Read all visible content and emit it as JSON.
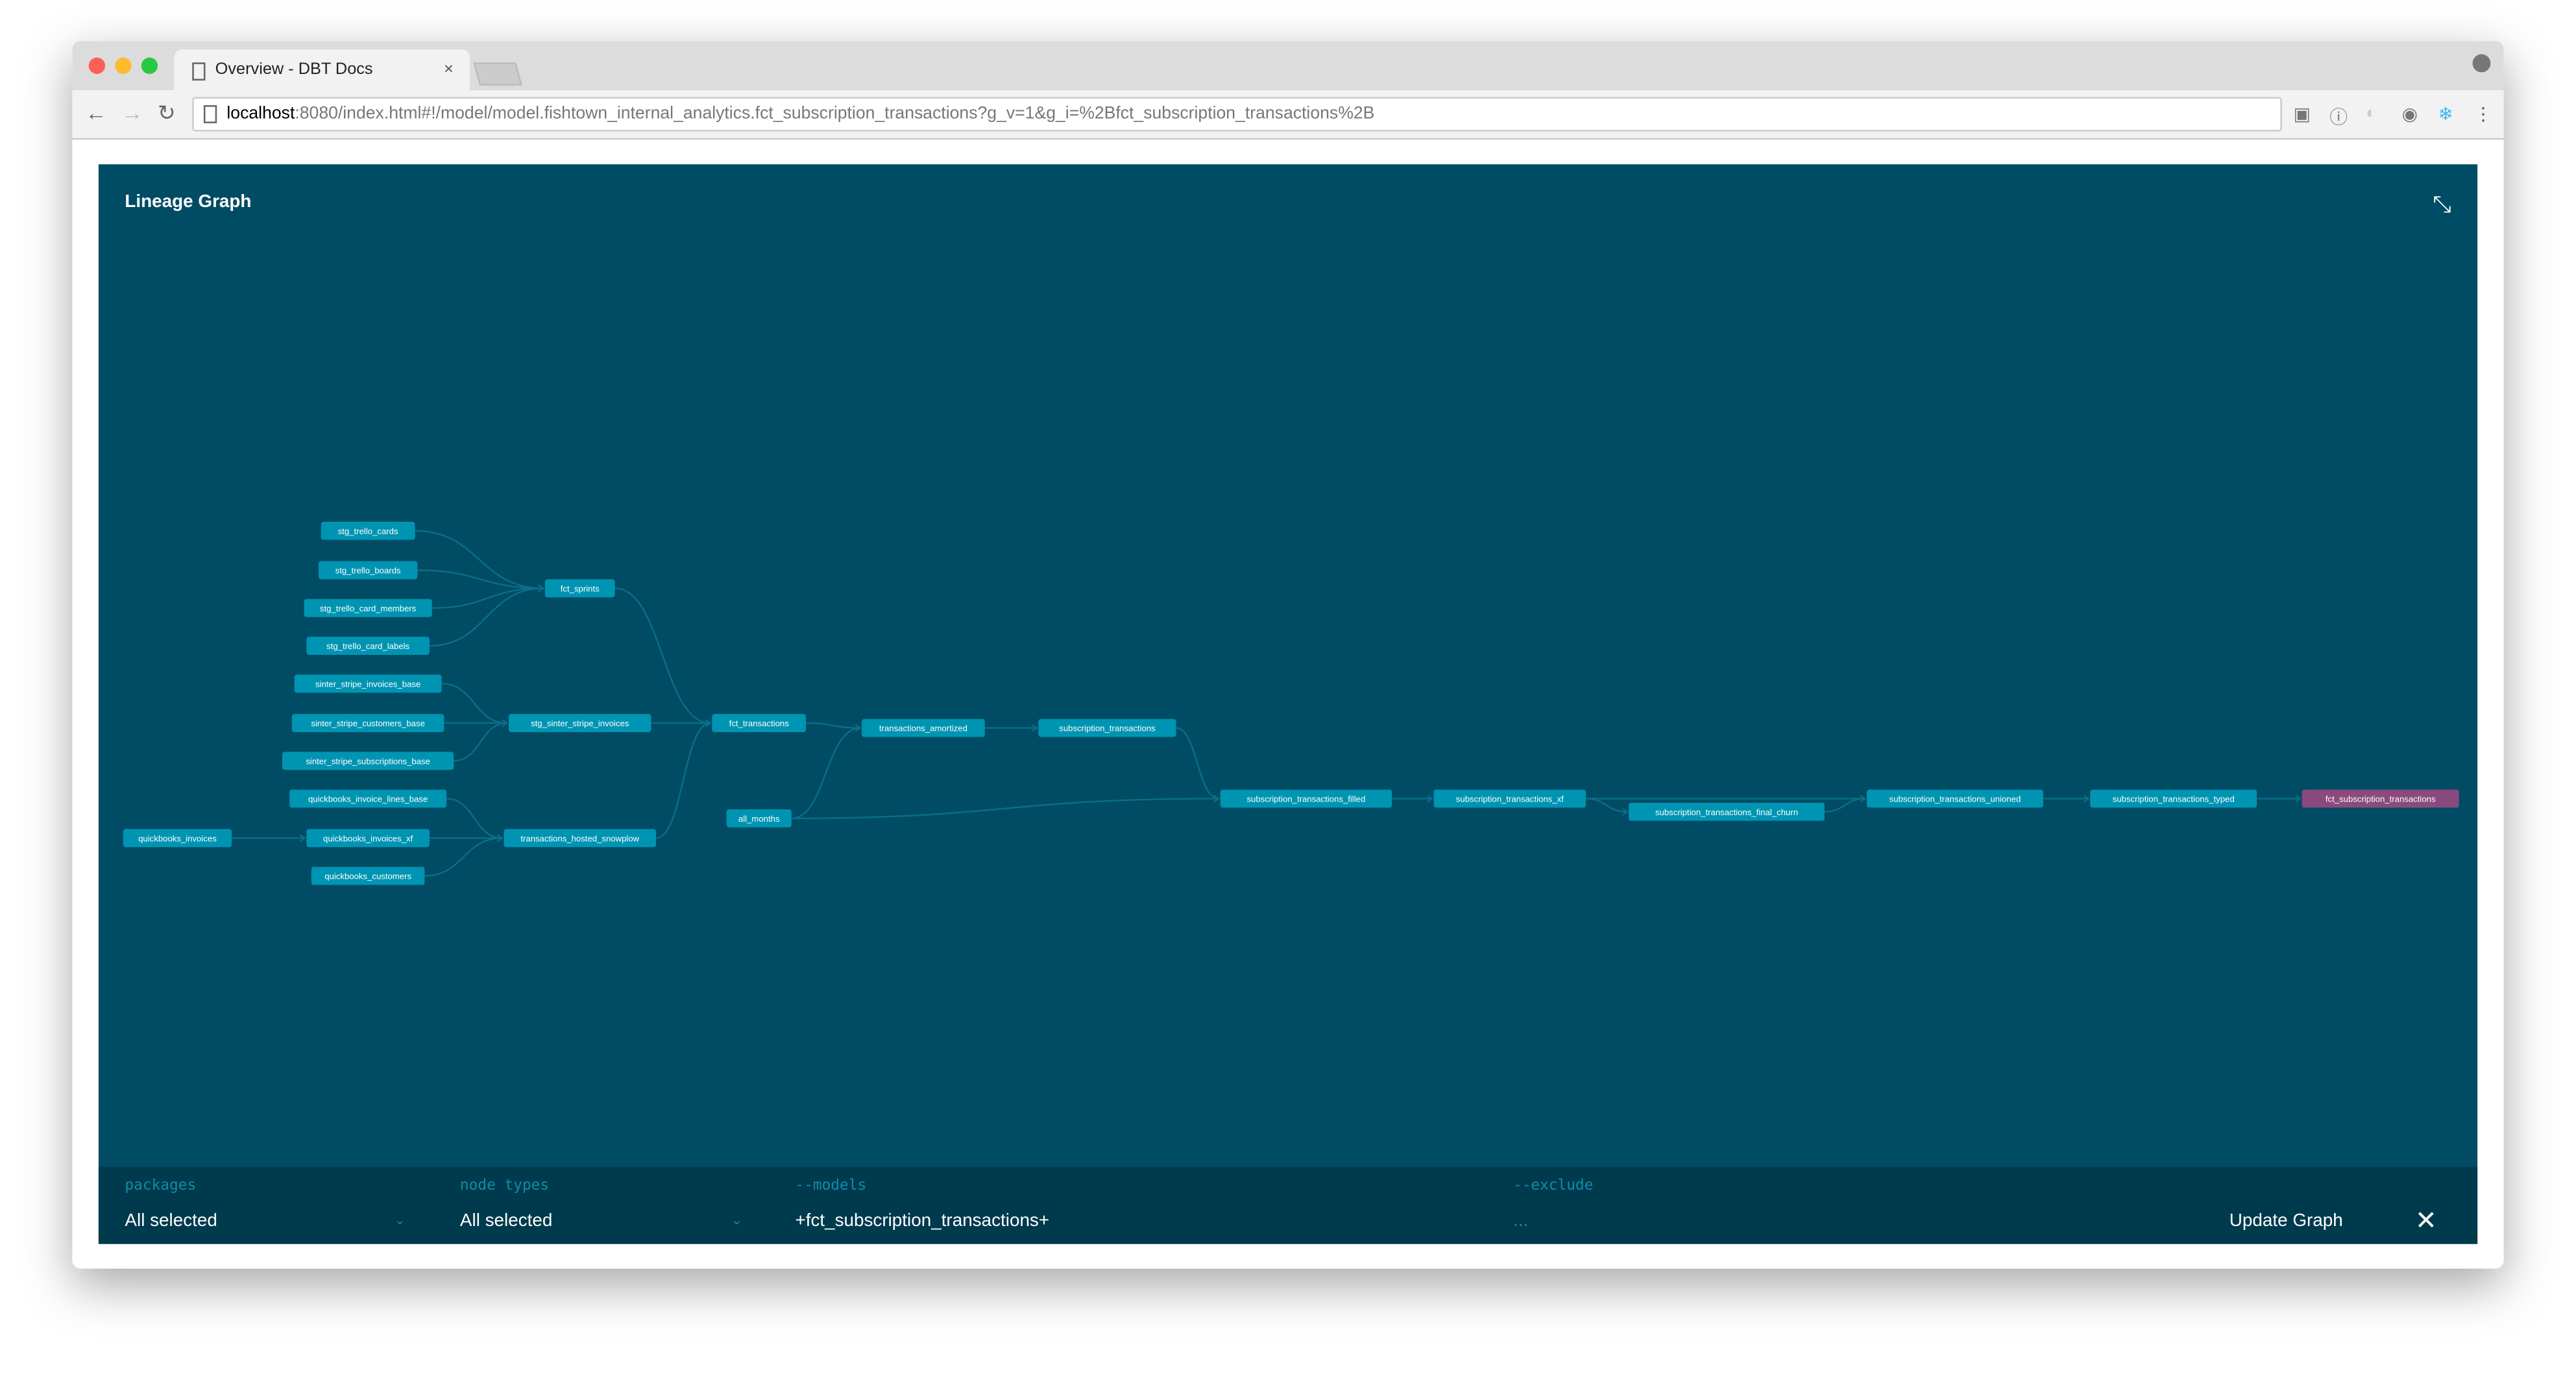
{
  "browser": {
    "tab_title": "Overview - DBT Docs",
    "tab_close": "×",
    "url_host": "localhost",
    "url_rest": ":8080/index.html#!/model/model.fishtown_internal_analytics.fct_subscription_transactions?g_v=1&g_i=%2Bfct_subscription_transactions%2B",
    "back": "←",
    "forward": "→",
    "reload": "↻",
    "menu": "⋮"
  },
  "panel": {
    "title": "Lineage Graph",
    "collapse_icon": "⤡"
  },
  "colors": {
    "background": "#004c64",
    "node": "#0094b3",
    "selected_node": "#8b4a7e",
    "edge": "#0b6f8c",
    "footer": "#003a4d"
  },
  "graph": {
    "selected": "fct_subscription_transactions",
    "nodes": [
      "stg_trello_cards",
      "stg_trello_boards",
      "stg_trello_card_members",
      "stg_trello_card_labels",
      "sinter_stripe_invoices_base",
      "sinter_stripe_customers_base",
      "sinter_stripe_subscriptions_base",
      "quickbooks_invoice_lines_base",
      "quickbooks_invoices_xf",
      "quickbooks_customers",
      "quickbooks_invoices",
      "fct_sprints",
      "stg_sinter_stripe_invoices",
      "transactions_hosted_snowplow",
      "fct_transactions",
      "all_months",
      "transactions_amortized",
      "subscription_transactions",
      "subscription_transactions_filled",
      "subscription_transactions_xf",
      "subscription_transactions_final_churn",
      "subscription_transactions_unioned",
      "subscription_transactions_typed",
      "fct_subscription_transactions"
    ],
    "edges": [
      [
        "stg_trello_cards",
        "fct_sprints"
      ],
      [
        "stg_trello_boards",
        "fct_sprints"
      ],
      [
        "stg_trello_card_members",
        "fct_sprints"
      ],
      [
        "stg_trello_card_labels",
        "fct_sprints"
      ],
      [
        "sinter_stripe_invoices_base",
        "stg_sinter_stripe_invoices"
      ],
      [
        "sinter_stripe_customers_base",
        "stg_sinter_stripe_invoices"
      ],
      [
        "sinter_stripe_subscriptions_base",
        "stg_sinter_stripe_invoices"
      ],
      [
        "quickbooks_invoice_lines_base",
        "transactions_hosted_snowplow"
      ],
      [
        "quickbooks_invoices_xf",
        "transactions_hosted_snowplow"
      ],
      [
        "quickbooks_customers",
        "transactions_hosted_snowplow"
      ],
      [
        "quickbooks_invoices",
        "quickbooks_invoices_xf"
      ],
      [
        "fct_sprints",
        "fct_transactions"
      ],
      [
        "stg_sinter_stripe_invoices",
        "fct_transactions"
      ],
      [
        "transactions_hosted_snowplow",
        "fct_transactions"
      ],
      [
        "fct_transactions",
        "transactions_amortized"
      ],
      [
        "all_months",
        "transactions_amortized"
      ],
      [
        "transactions_amortized",
        "subscription_transactions"
      ],
      [
        "subscription_transactions",
        "subscription_transactions_filled"
      ],
      [
        "all_months",
        "subscription_transactions_filled"
      ],
      [
        "subscription_transactions_filled",
        "subscription_transactions_xf"
      ],
      [
        "subscription_transactions_xf",
        "subscription_transactions_final_churn"
      ],
      [
        "subscription_transactions_xf",
        "subscription_transactions_unioned"
      ],
      [
        "subscription_transactions_final_churn",
        "subscription_transactions_unioned"
      ],
      [
        "subscription_transactions_unioned",
        "subscription_transactions_typed"
      ],
      [
        "subscription_transactions_typed",
        "fct_subscription_transactions"
      ]
    ]
  },
  "footer": {
    "packages_label": "packages",
    "packages_value": "All selected",
    "node_types_label": "node types",
    "node_types_value": "All selected",
    "models_label": "--models",
    "models_value": "+fct_subscription_transactions+",
    "exclude_label": "--exclude",
    "exclude_value": "...",
    "update_button": "Update Graph",
    "close": "✕",
    "chevron": "⌄"
  }
}
